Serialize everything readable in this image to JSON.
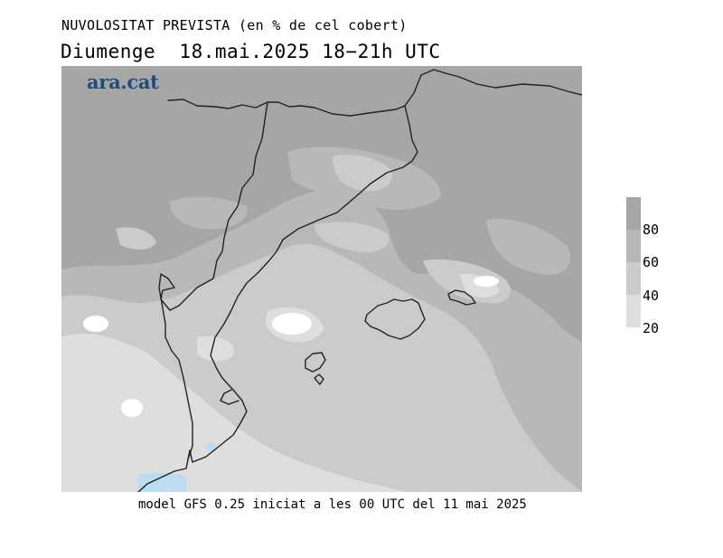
{
  "title": "NUVOLOSITAT PREVISTA (en % de cel cobert)",
  "subtitle": "Diumenge  18.mai.2025 18−21h UTC",
  "logo_text": "ara.cat",
  "footer": "model GFS 0.25 iniciat a les 00 UTC del 11 mai 2025",
  "legend": {
    "labels": [
      "80",
      "60",
      "40",
      "20"
    ],
    "colors": [
      "#a6a6a6",
      "#b8b8b8",
      "#cbcbcb",
      "#dedede"
    ]
  },
  "palette": {
    "cloud_80_100": "#a6a6a6",
    "cloud_60_80": "#b8b8b8",
    "cloud_40_60": "#cbcbcb",
    "cloud_20_40": "#dedede",
    "clear_0_20": "#ffffff",
    "rain_blue": "#bcdcf2",
    "coast_line": "#222222",
    "logo_blue": "#1f4e7a"
  }
}
